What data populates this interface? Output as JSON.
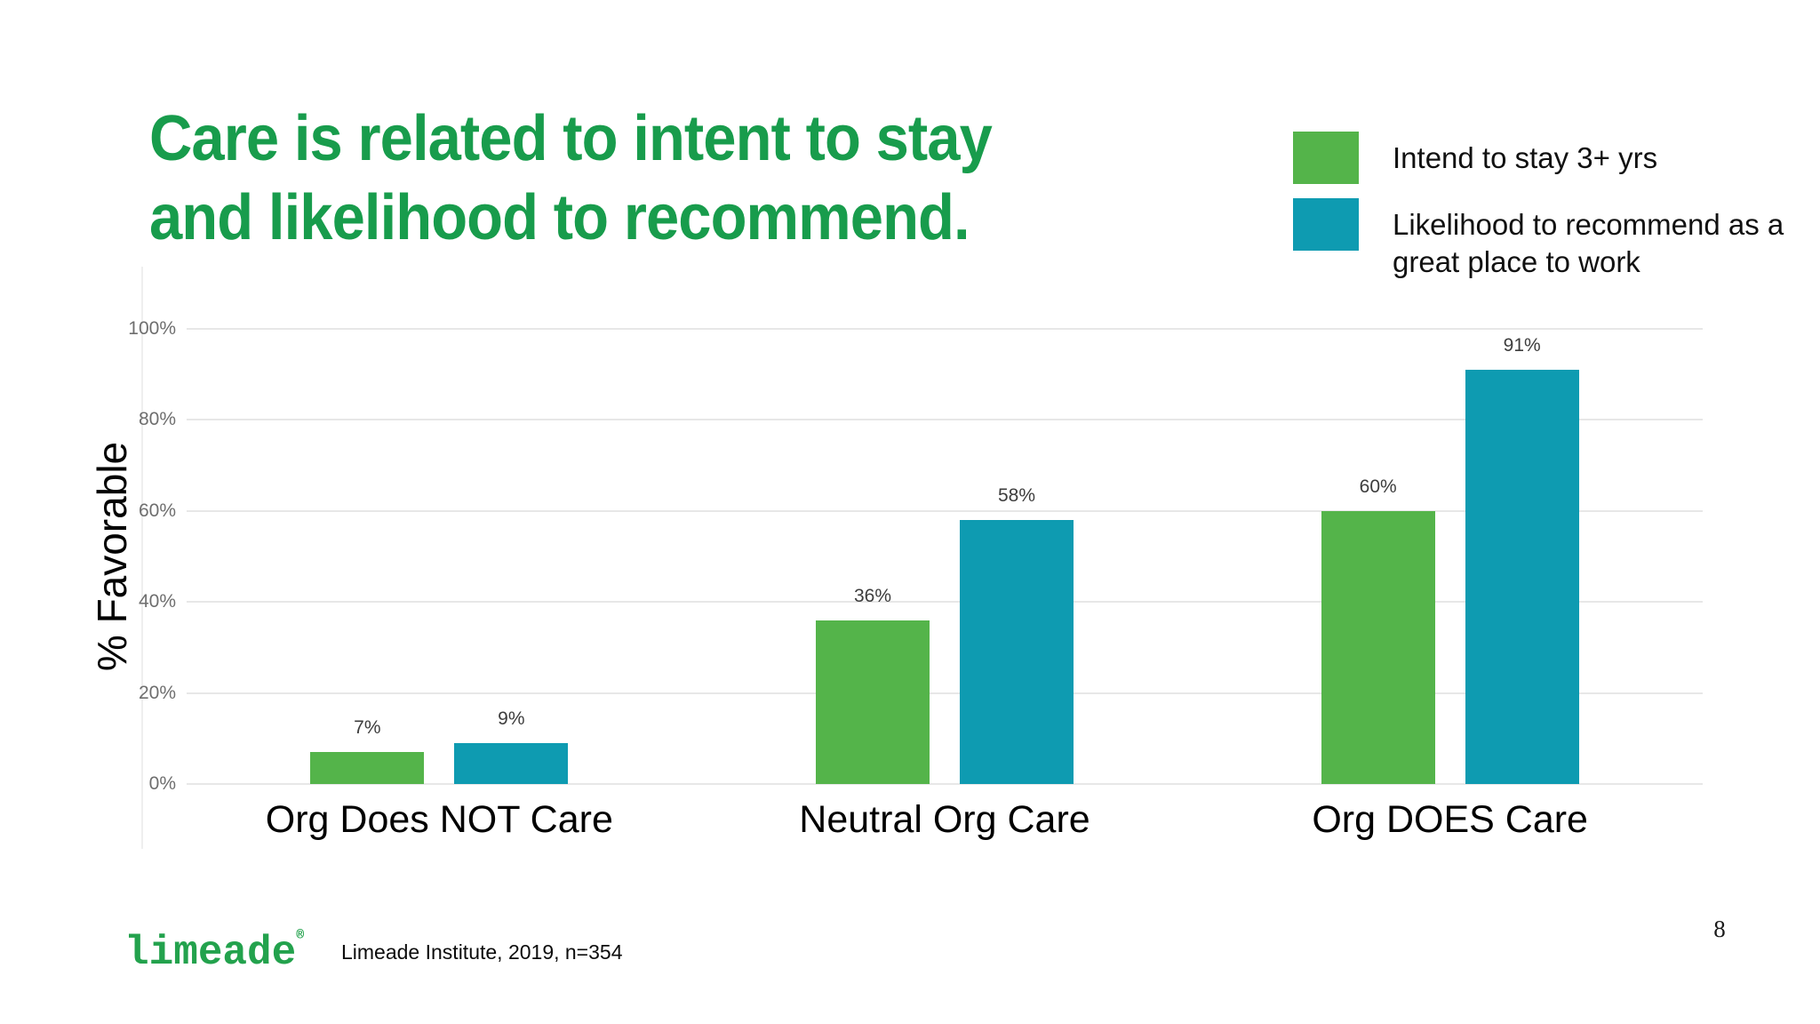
{
  "slide": {
    "title": "Care is related to intent to stay\nand likelihood to recommend.",
    "title_color": "#189c4c",
    "page_number": "8"
  },
  "legend": {
    "items": [
      {
        "icon": "green-swatch",
        "color": "#54b44a",
        "label": "Intend to stay 3+ yrs"
      },
      {
        "icon": "teal-swatch",
        "color": "#0e9bb1",
        "label": "Likelihood to recommend as a\ngreat place to work"
      }
    ]
  },
  "footer": {
    "logo_text": "limeade",
    "logo_mark": "®",
    "logo_color": "#23a24d",
    "source_text": "Limeade Institute, 2019, n=354"
  },
  "chart_data": {
    "type": "bar",
    "title": "",
    "xlabel": "",
    "ylabel": "% Favorable",
    "categories": [
      "Org Does NOT Care",
      "Neutral Org Care",
      "Org DOES Care"
    ],
    "series": [
      {
        "name": "Intend to stay 3+ yrs",
        "color": "#54b44a",
        "values": [
          7,
          36,
          60
        ]
      },
      {
        "name": "Likelihood to recommend as a great place to work",
        "color": "#0e9bb1",
        "values": [
          9,
          58,
          91
        ]
      }
    ],
    "ylim": [
      0,
      100
    ],
    "yticks": [
      0,
      20,
      40,
      60,
      80,
      100
    ],
    "ytick_suffix": "%",
    "value_label_suffix": "%",
    "grid": true,
    "legend_position": "top-right"
  }
}
